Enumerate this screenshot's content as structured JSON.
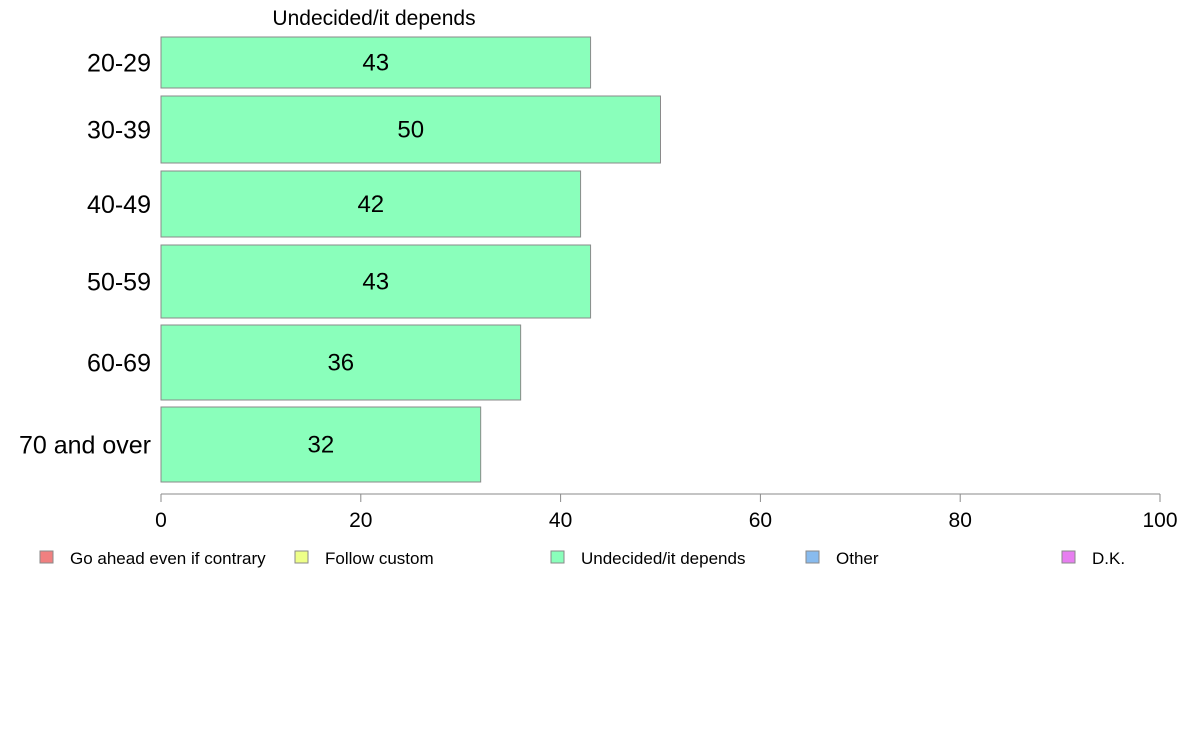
{
  "chart_data": {
    "type": "bar",
    "orientation": "horizontal",
    "title": "Undecided/it depends",
    "categories": [
      "20-29",
      "30-39",
      "40-49",
      "50-59",
      "60-69",
      "70 and over"
    ],
    "values": [
      43,
      50,
      42,
      43,
      36,
      32
    ],
    "bar_labels": [
      "43",
      "50",
      "42",
      "43",
      "36",
      "32"
    ],
    "xlim": [
      0,
      100
    ],
    "x_ticks": [
      0,
      20,
      40,
      60,
      80,
      100
    ],
    "x_tick_labels": [
      "0",
      "20",
      "40",
      "60",
      "80",
      "100"
    ],
    "bar_color": "#8affbb",
    "grid": false,
    "legend_position": "bottom",
    "legend": [
      {
        "label": "Go ahead even if contrary",
        "color": "#f08080"
      },
      {
        "label": "Follow custom",
        "color": "#eeff88"
      },
      {
        "label": "Undecided/it depends",
        "color": "#8affbb"
      },
      {
        "label": "Other",
        "color": "#88bbee"
      },
      {
        "label": "D.K.",
        "color": "#e77ef0"
      }
    ]
  }
}
